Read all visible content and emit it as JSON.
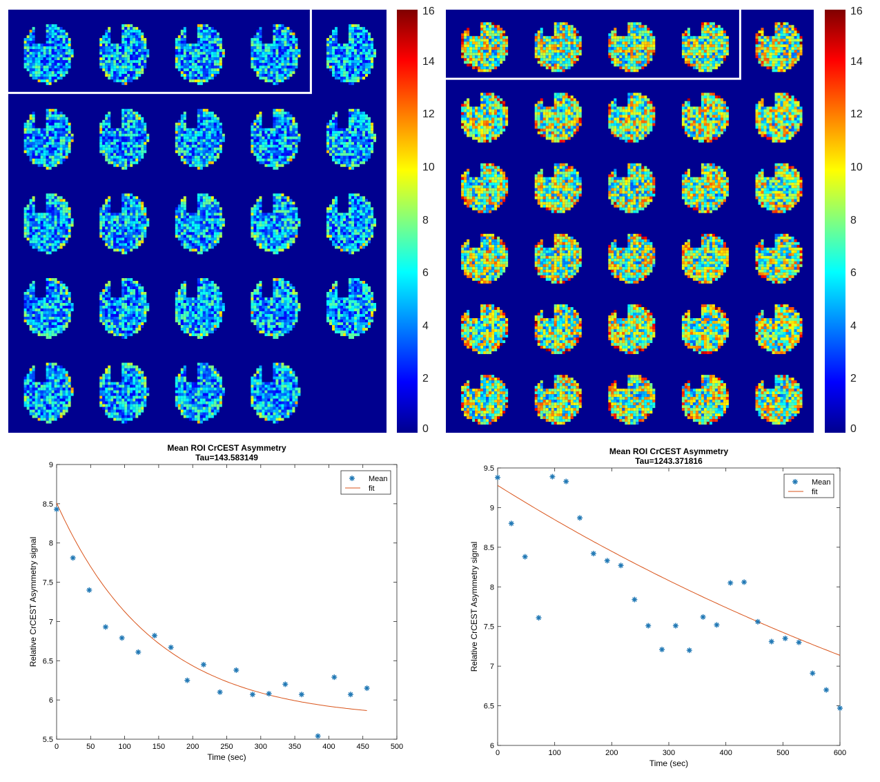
{
  "colorbar": {
    "ticks": [
      "0",
      "2",
      "4",
      "6",
      "8",
      "10",
      "12",
      "14",
      "16"
    ],
    "range": [
      0,
      16
    ]
  },
  "montages": [
    {
      "rows": 5,
      "cols": 5,
      "tiles": 24,
      "highlight_first_row_cells": 4,
      "intensity": 0.45
    },
    {
      "rows": 6,
      "cols": 5,
      "tiles": 30,
      "highlight_first_row_cells": 4,
      "intensity": 0.65
    }
  ],
  "colors": {
    "background": "#00008f",
    "marker": "#1f77b4",
    "fit": "#d95319"
  },
  "chart_data": [
    {
      "type": "scatter",
      "title": "Mean ROI CrCEST Asymmetry",
      "subtitle": "Tau=143.583149",
      "xlabel": "Time (sec)",
      "ylabel": "Relative CrCEST Asymmetry signal",
      "xlim": [
        0,
        500
      ],
      "ylim": [
        5.5,
        9
      ],
      "xticks": [
        0,
        50,
        100,
        150,
        200,
        250,
        300,
        350,
        400,
        450,
        500
      ],
      "yticks": [
        5.5,
        6,
        6.5,
        7,
        7.5,
        8,
        8.5,
        9
      ],
      "legend": {
        "position": "top-right",
        "entries": [
          "Mean",
          "fit"
        ]
      },
      "series": [
        {
          "name": "Mean",
          "x": [
            0,
            24,
            48,
            72,
            96,
            120,
            144,
            168,
            192,
            216,
            240,
            264,
            288,
            312,
            336,
            360,
            384,
            408,
            432,
            456
          ],
          "y": [
            8.43,
            7.81,
            7.4,
            6.93,
            6.79,
            6.61,
            6.82,
            6.67,
            6.25,
            6.45,
            6.1,
            6.38,
            6.07,
            6.08,
            6.2,
            6.07,
            5.54,
            6.29,
            6.07,
            6.15
          ]
        },
        {
          "name": "fit",
          "model": "exponential",
          "x_range": [
            0,
            456
          ],
          "offset": 5.75,
          "amplitude": 2.76,
          "tau": 143.583149
        }
      ]
    },
    {
      "type": "scatter",
      "title": "Mean ROI CrCEST Asymmetry",
      "subtitle": "Tau=1243.371816",
      "xlabel": "Time (sec)",
      "ylabel": "Relative CrCEST Asymmetry signal",
      "xlim": [
        0,
        600
      ],
      "ylim": [
        6,
        9.5
      ],
      "xticks": [
        0,
        100,
        200,
        300,
        400,
        500,
        600
      ],
      "yticks": [
        6,
        6.5,
        7,
        7.5,
        8,
        8.5,
        9,
        9.5
      ],
      "legend": {
        "position": "top-right",
        "entries": [
          "Mean",
          "fit"
        ]
      },
      "series": [
        {
          "name": "Mean",
          "x": [
            0,
            24,
            48,
            72,
            96,
            120,
            144,
            168,
            192,
            216,
            240,
            264,
            288,
            312,
            336,
            360,
            384,
            408,
            432,
            456,
            480,
            504,
            528,
            552,
            576,
            600
          ],
          "y": [
            9.38,
            8.8,
            8.38,
            7.61,
            9.39,
            9.33,
            8.87,
            8.42,
            8.33,
            8.27,
            7.84,
            7.51,
            7.21,
            7.51,
            7.2,
            7.62,
            7.52,
            8.05,
            8.06,
            7.56,
            7.31,
            7.35,
            7.3,
            6.91,
            6.7,
            6.47
          ]
        },
        {
          "name": "fit",
          "model": "exponential",
          "x_range": [
            0,
            600
          ],
          "offset": 3.68,
          "amplitude": 5.6,
          "tau": 1243.371816
        }
      ]
    }
  ]
}
